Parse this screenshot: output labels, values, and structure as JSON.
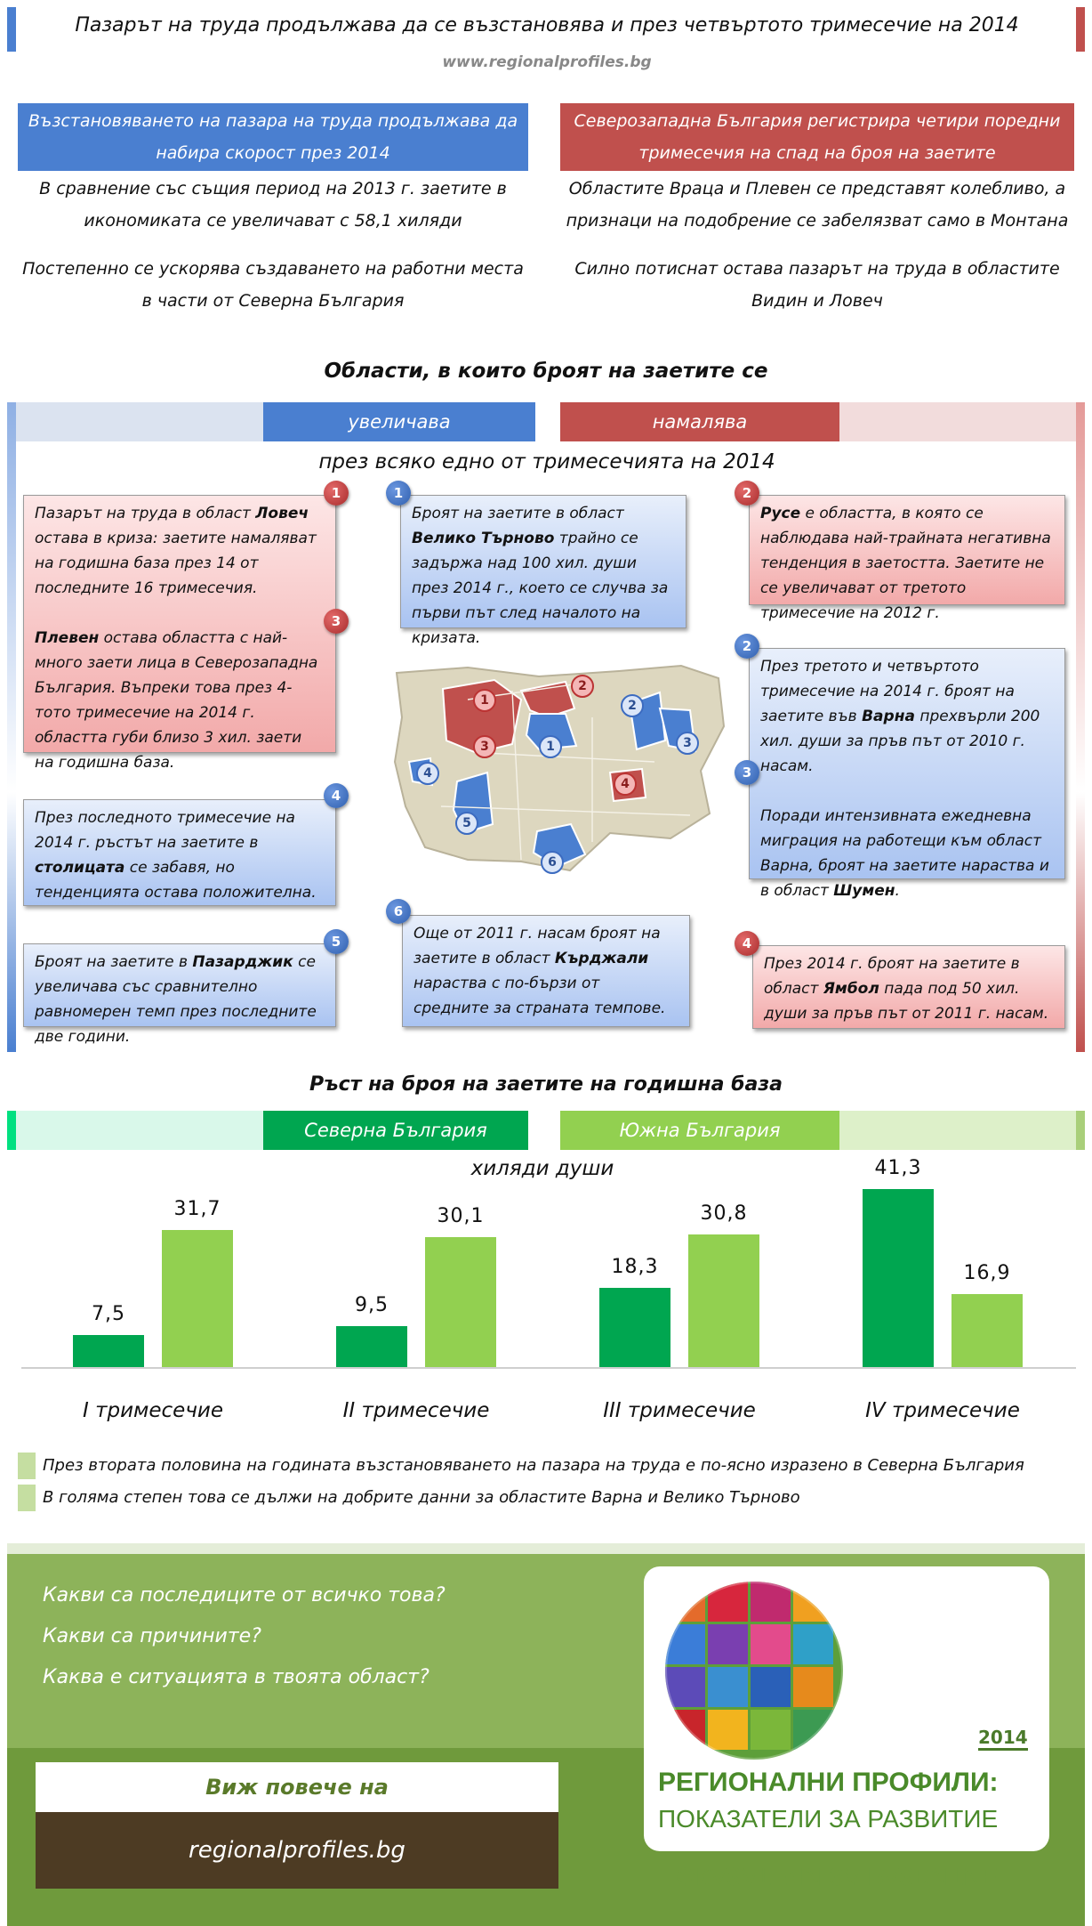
{
  "header": {
    "title": "Пазарът на труда продължава да се възстановява и през четвъртото тримесечие на 2014",
    "site": "www.regionalprofiles.bg"
  },
  "intro": {
    "left_banner": "Възстановяването на пазара на труда продължава да набира скорост през 2014",
    "right_banner": "Северозападна България регистрира четири поредни тримесечия на спад на броя на заетите",
    "left_p1": "В сравнение със същия период на 2013 г. заетите в икономиката се увеличават с 58,1 хиляди",
    "left_p2": "Постепенно се ускорява създаването на работни места в части от Северна България",
    "right_p1": "Областите Враца и Плевен се представят колебливо, а признаци на подобрение се забелязват само в Монтана",
    "right_p2": "Силно потиснат остава пазарът на труда в областите Видин и Ловеч"
  },
  "regions_section": {
    "heading": "Области, в които броят на заетите се",
    "increase_label": "увеличава",
    "decrease_label": "намалява",
    "subheading": "през всяко едно от тримесечията на 2014",
    "badges": [
      "1",
      "2",
      "3",
      "4",
      "5",
      "6"
    ],
    "left_red_box": {
      "p1_a": "Пазарът на труда в област ",
      "p1_b": "Ловеч",
      "p1_c": " остава в криза: заетите намаляват на годишна база през 14 от последните 16 тримесечия.",
      "p2_a": "Плевен",
      "p2_b": " остава областта с най-много заети лица в Северозападна България. Въпреки това през 4-тото тримесечие на 2014 г. областта губи близо 3 хил. заети на годишна база."
    },
    "center_top_box": {
      "a": "Броят на заетите в област ",
      "b": "Велико Търново",
      "c": " трайно се задържа над 100 хил. души през 2014 г., което се случва за първи път след началото на кризата."
    },
    "right_red_box": {
      "a": "Русе",
      "b": " е областта, в която се наблюдава най-трайната негативна тенденция в заетостта. Заетите не се увеличават от третото тримесечие на 2012 г."
    },
    "right_blue_box": {
      "p1_a": "През третото и четвъртото тримесечие на 2014 г. броят на заетите във ",
      "p1_b": "Варна",
      "p1_c": " прехвърли 200 хил. души за пръв път от 2010 г. насам.",
      "p2_a": "Поради интензивната ежедневна миграция на работещи към област Варна, броят на заетите нараства и в област ",
      "p2_b": "Шумен",
      "p2_c": "."
    },
    "left_blue_box1": {
      "a": "През последното тримесечие на 2014 г. ръстът на заетите в ",
      "b": "столицата",
      "c": " се забавя, но тенденцията остава положителна."
    },
    "left_blue_box2": {
      "a": "Броят на заетите в ",
      "b": "Пазарджик",
      "c": " се увеличава със сравнително равномерен темп през последните две години."
    },
    "center_bottom_box": {
      "a": "Още от 2011 г. насам броят на заетите в област ",
      "b": "Кърджали",
      "c": " нараства с по-бързи от средните за страната темпове."
    },
    "right_red_box2": {
      "a": "През 2014 г. броят на заетите в област ",
      "b": "Ямбол",
      "c": " пада под 50 хил. души за пръв път от 2011 г. насам."
    }
  },
  "growth_section": {
    "heading": "Ръст на броя на заетите на годишна база",
    "north_label": "Северна България",
    "south_label": "Южна България",
    "unit": "хиляди души"
  },
  "chart_data": {
    "type": "bar",
    "categories": [
      "I тримесечие",
      "II тримесечие",
      "III тримесечие",
      "IV тримесечие"
    ],
    "series": [
      {
        "name": "Северна България",
        "color": "#00a650",
        "values": [
          7.5,
          9.5,
          18.3,
          41.3
        ],
        "labels": [
          "7,5",
          "9,5",
          "18,3",
          "41,3"
        ]
      },
      {
        "name": "Южна България",
        "color": "#92d050",
        "values": [
          31.7,
          30.1,
          30.8,
          16.9
        ],
        "labels": [
          "31,7",
          "30,1",
          "30,8",
          "16,9"
        ]
      }
    ],
    "ylabel": "хиляди души",
    "ylim": [
      0,
      41.3
    ]
  },
  "notes": [
    "През втората половина на годината възстановяването на пазара на труда е по-ясно изразено в Северна България",
    "В голяма степен това се дължи на добрите данни за областите Варна и Велико Търново"
  ],
  "footer": {
    "questions": [
      "Какви са последиците от всичко това?",
      "Какви са причините?",
      "Каква е ситуацията в твоята област?"
    ],
    "see_more": "Виж повече на",
    "url": "regionalprofiles.bg",
    "logo_year": "2014",
    "logo_title": "РЕГИОНАЛНИ ПРОФИЛИ:",
    "logo_subtitle": "ПОКАЗАТЕЛИ ЗА РАЗВИТИЕ"
  },
  "colors": {
    "blue": "#4a7fd0",
    "red": "#c0504d",
    "green_dark": "#00a650",
    "green_light": "#92d050",
    "footer_green": "#8db35a",
    "footer_dark": "#4d3b23"
  }
}
